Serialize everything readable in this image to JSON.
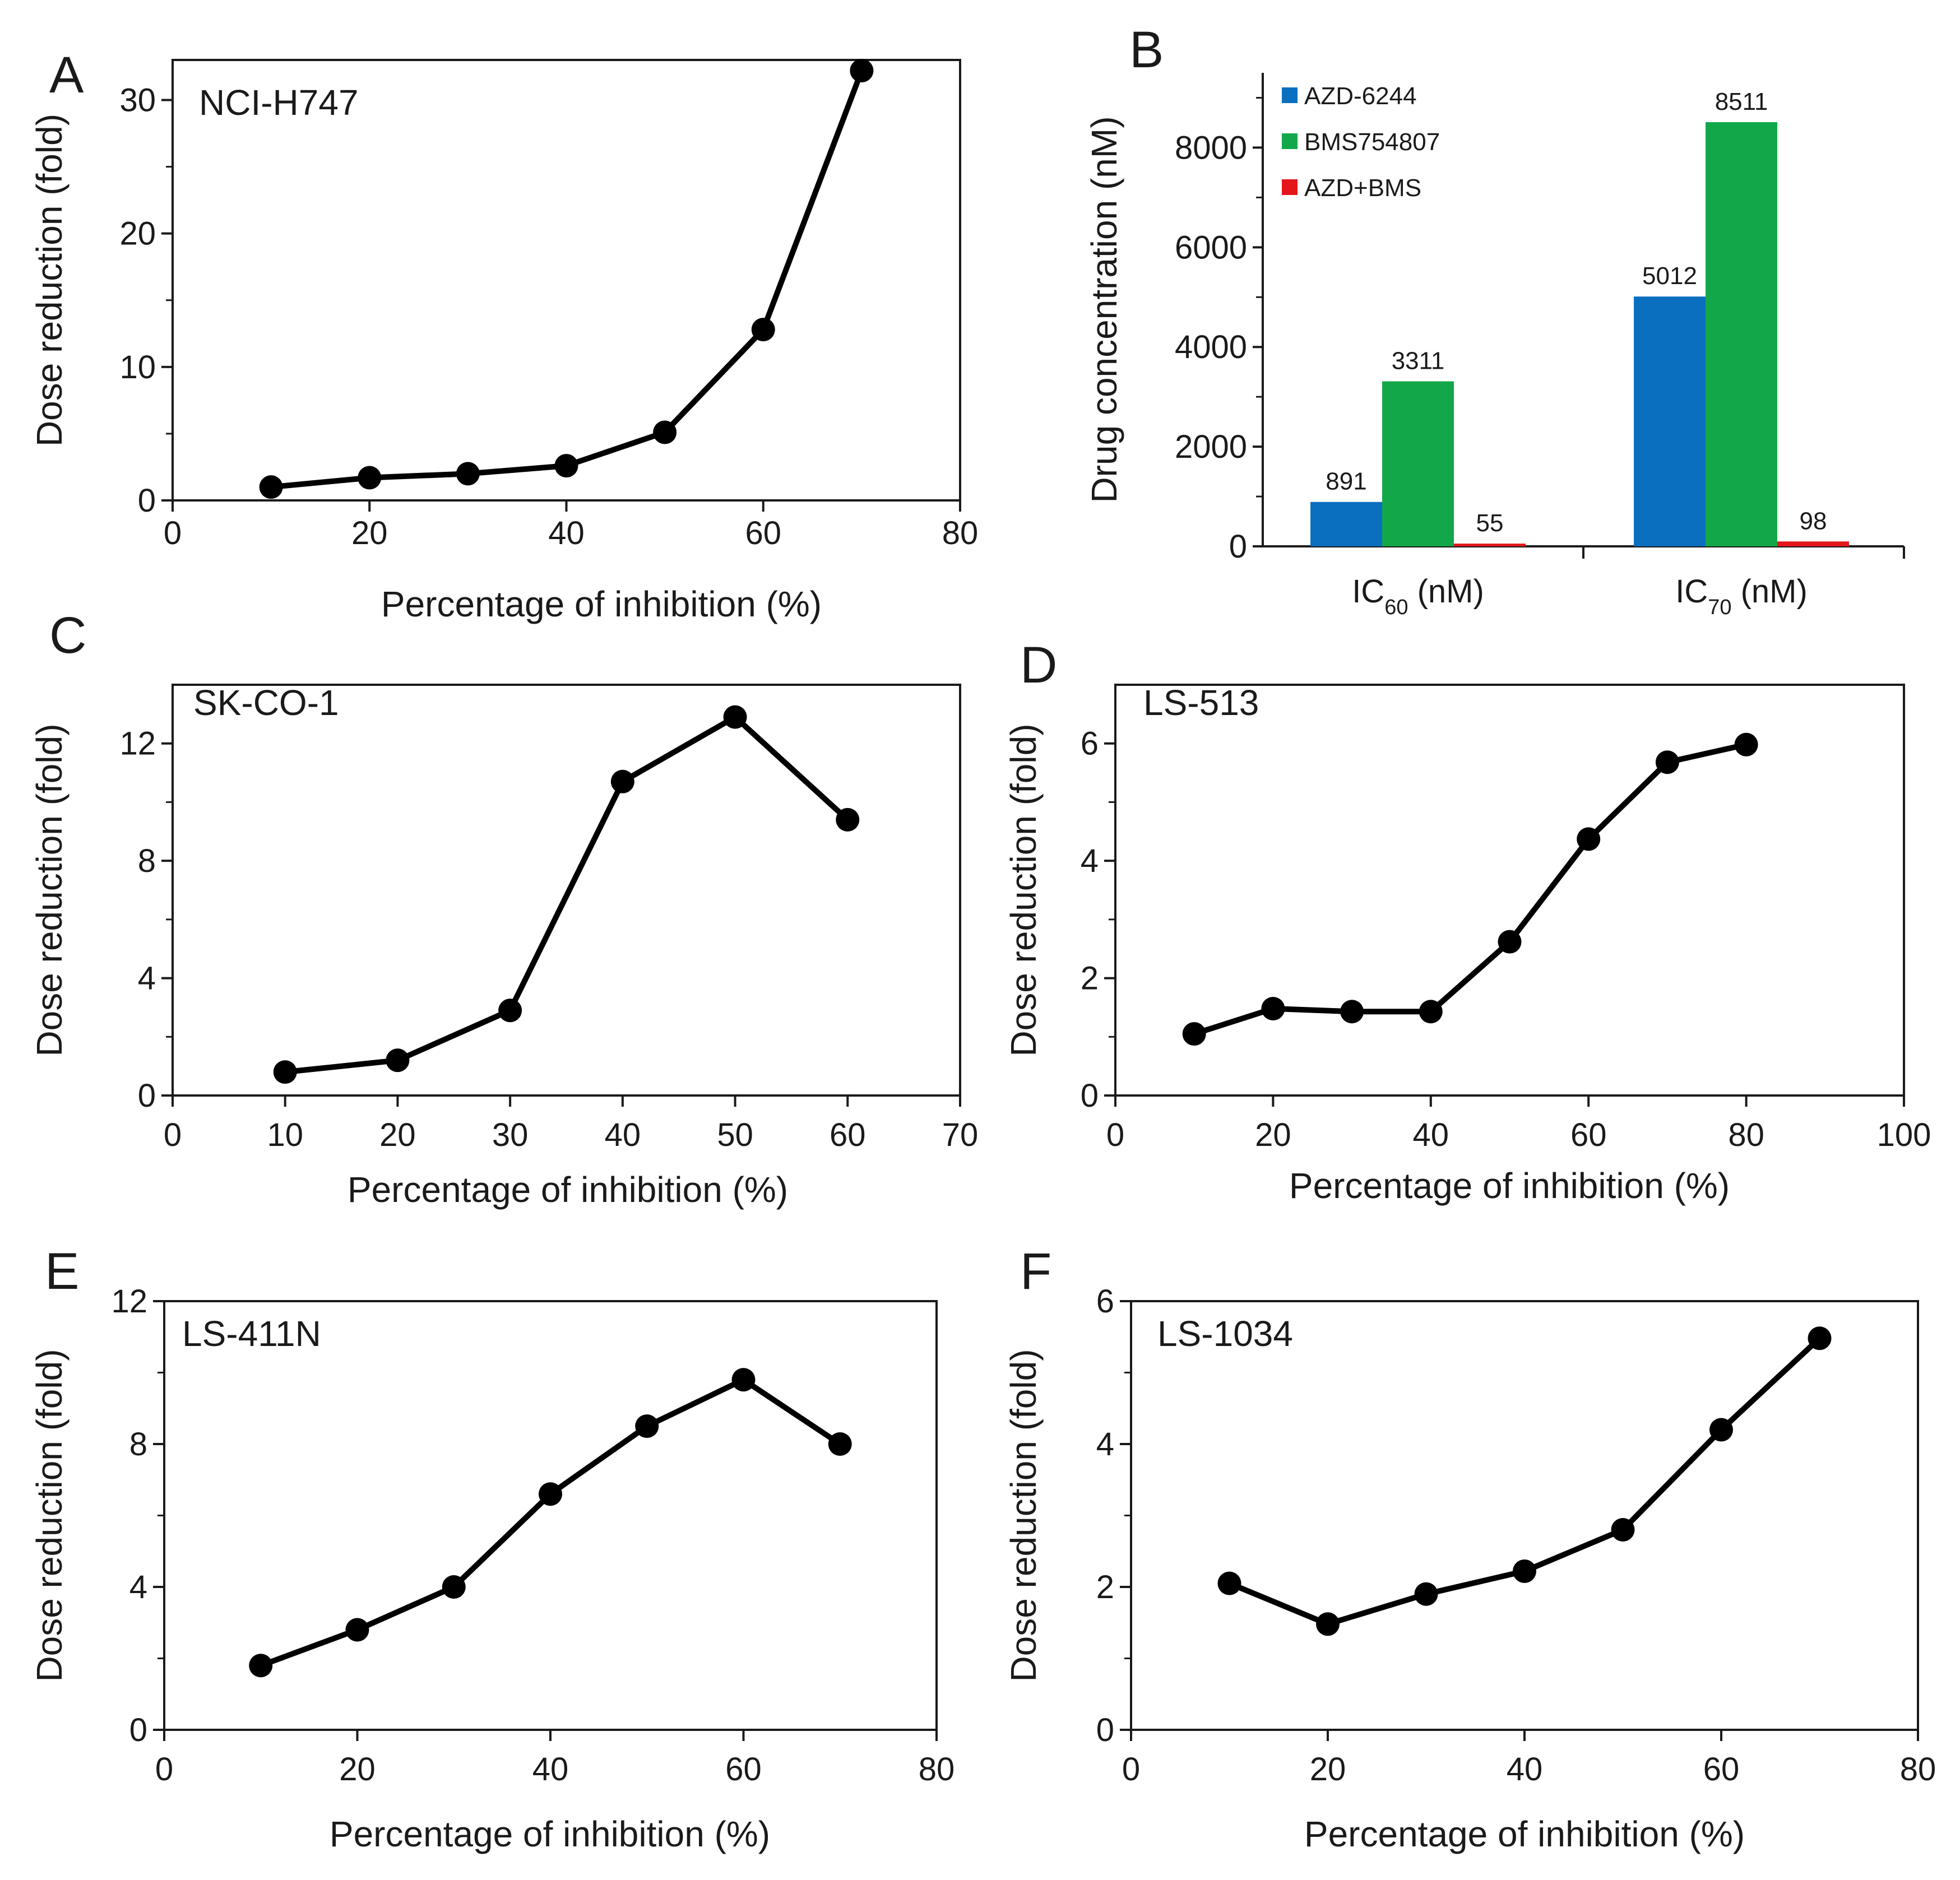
{
  "chart_data": [
    {
      "panel": "A",
      "type": "line",
      "cell_line": "NCI-H747",
      "xlabel": "Percentage of inhibition (%)",
      "ylabel": "Dose reduction (fold)",
      "xlim": [
        0,
        80
      ],
      "ylim": [
        0,
        33
      ],
      "xticks": [
        0,
        20,
        40,
        60,
        80
      ],
      "yticks": [
        0,
        10,
        20,
        30
      ],
      "yminor": [
        5,
        15,
        25
      ],
      "x": [
        10,
        20,
        30,
        40,
        50,
        60,
        70
      ],
      "y": [
        1.0,
        1.7,
        2.0,
        2.6,
        5.1,
        12.8,
        32.2
      ]
    },
    {
      "panel": "B",
      "type": "bar",
      "ylabel": "Drug concentration (nM)",
      "ylim": [
        0,
        9500
      ],
      "yticks": [
        0,
        2000,
        4000,
        6000,
        8000
      ],
      "categories": [
        {
          "main": "IC",
          "sub": "60",
          "tail": " (nM)"
        },
        {
          "main": "IC",
          "sub": "70",
          "tail": " (nM)"
        }
      ],
      "series": [
        {
          "name": "AZD-6244",
          "color": "#0b6fbf",
          "values": [
            891,
            5012
          ]
        },
        {
          "name": "BMS754807",
          "color": "#12a84a",
          "values": [
            3311,
            8511
          ]
        },
        {
          "name": "AZD+BMS",
          "color": "#e3161b",
          "values": [
            55,
            98
          ]
        }
      ],
      "legend": "top-left"
    },
    {
      "panel": "C",
      "type": "line",
      "cell_line": "SK-CO-1",
      "xlabel": "Percentage of inhibition (%)",
      "ylabel": "Dose reduction (fold)",
      "xlim": [
        0,
        70
      ],
      "ylim": [
        0,
        14
      ],
      "xticks": [
        0,
        10,
        20,
        30,
        40,
        50,
        60,
        70
      ],
      "yticks": [
        0,
        4,
        8,
        12
      ],
      "yminor": [
        2,
        6,
        10
      ],
      "x": [
        10,
        20,
        30,
        40,
        50,
        60
      ],
      "y": [
        0.8,
        1.2,
        2.9,
        10.7,
        12.9,
        9.4
      ]
    },
    {
      "panel": "D",
      "type": "line",
      "cell_line": "LS-513",
      "xlabel": "Percentage of inhibition (%)",
      "ylabel": "Dose reduction (fold)",
      "xlim": [
        0,
        100
      ],
      "ylim": [
        0,
        7
      ],
      "xticks": [
        0,
        20,
        40,
        60,
        80,
        100
      ],
      "yticks": [
        0,
        2,
        4,
        6
      ],
      "yminor": [
        1,
        3,
        5
      ],
      "x": [
        10,
        20,
        30,
        40,
        50,
        60,
        70,
        80
      ],
      "y": [
        1.05,
        1.48,
        1.43,
        1.43,
        2.62,
        4.37,
        5.68,
        5.98
      ]
    },
    {
      "panel": "E",
      "type": "line",
      "cell_line": "LS-411N",
      "xlabel": "Percentage of inhibition (%)",
      "ylabel": "Dose reduction (fold)",
      "xlim": [
        0,
        80
      ],
      "ylim": [
        0,
        12
      ],
      "xticks": [
        0,
        20,
        40,
        60,
        80
      ],
      "yticks": [
        0,
        4,
        8,
        12
      ],
      "yminor": [
        2,
        6,
        10
      ],
      "x": [
        10,
        20,
        30,
        40,
        50,
        60,
        70
      ],
      "y": [
        1.8,
        2.8,
        4.0,
        6.6,
        8.5,
        9.8,
        8.0
      ]
    },
    {
      "panel": "F",
      "type": "line",
      "cell_line": "LS-1034",
      "xlabel": "Percentage of inhibition (%)",
      "ylabel": "Dose reduction (fold)",
      "xlim": [
        0,
        80
      ],
      "ylim": [
        0,
        6
      ],
      "xticks": [
        0,
        20,
        40,
        60,
        80
      ],
      "yticks": [
        0,
        2,
        4,
        6
      ],
      "yminor": [
        1,
        3,
        5
      ],
      "x": [
        10,
        20,
        30,
        40,
        50,
        60,
        70
      ],
      "y": [
        2.05,
        1.48,
        1.9,
        2.22,
        2.8,
        4.2,
        5.48
      ]
    }
  ]
}
